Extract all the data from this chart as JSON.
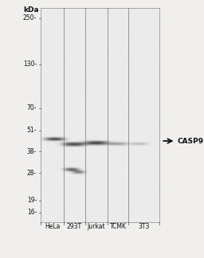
{
  "fig_width": 2.56,
  "fig_height": 3.24,
  "dpi": 100,
  "background_color": "#f0efed",
  "blot_bg_color": "#e8e6e2",
  "kda_header": "kDa",
  "kda_labels": [
    "250-",
    "130-",
    "70-",
    "51-",
    "38-",
    "28-",
    "19-",
    "16-"
  ],
  "kda_values": [
    250,
    130,
    70,
    51,
    38,
    28,
    19,
    16
  ],
  "lane_labels": [
    "HeLa",
    "293T",
    "Jurkat",
    "TCMK",
    "3T3"
  ],
  "casp9_label": "CASP9",
  "annotation_kda": 44,
  "main_band_kda": 44,
  "lower_band_kda": 29
}
